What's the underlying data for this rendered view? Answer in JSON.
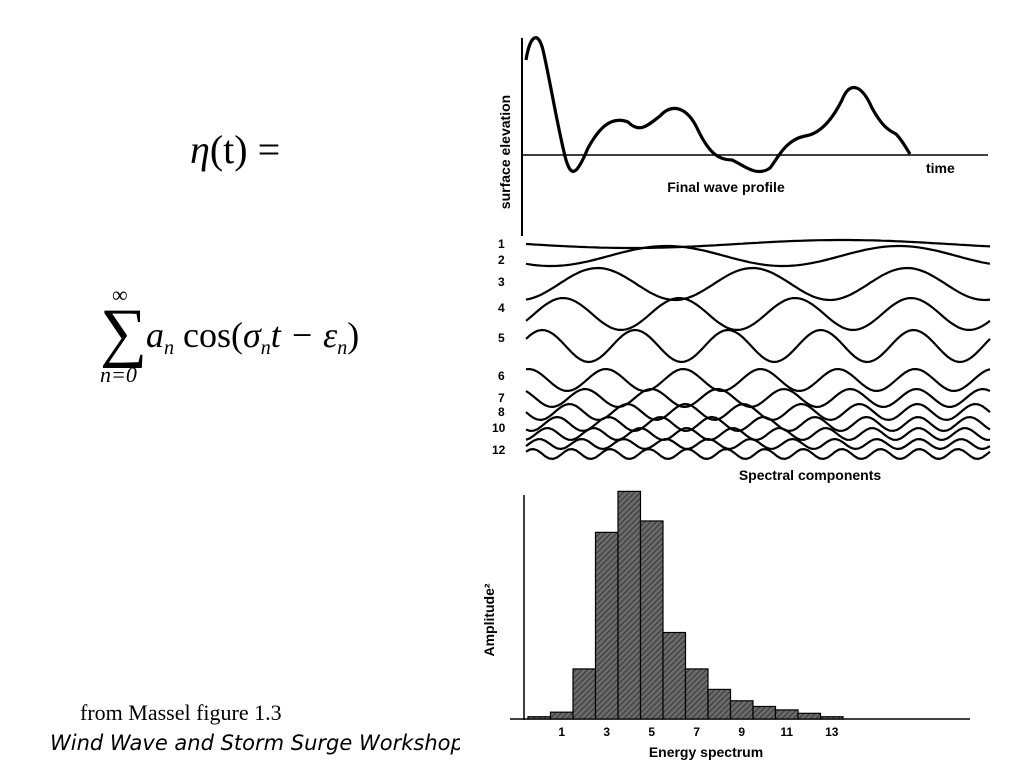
{
  "equation": {
    "lhs_symbol": "η",
    "lhs_arg": "(t) =",
    "sum_upper": "∞",
    "sum_lower": "n=0",
    "term_a": "a",
    "term_cos": "cos(",
    "term_sigma": "σ",
    "term_t": "t −",
    "term_eps": "ε",
    "term_close": ")",
    "subscript": "n"
  },
  "caption": {
    "source_line": "from Massel figure 1.3",
    "book_line": "Wind Wave and Storm Surge Workshop"
  },
  "profile_panel": {
    "ylabel": "surface elevation",
    "time_label": "time",
    "title": "Final wave profile"
  },
  "components_panel": {
    "title": "Spectral components",
    "row_labels": [
      "1",
      "2",
      "3",
      "4",
      "5",
      "6",
      "7",
      "8",
      "10",
      "12"
    ]
  },
  "chart_data": {
    "type": "bar",
    "title": "Energy spectrum",
    "xlabel": "Energy spectrum",
    "ylabel": "Amplitude²",
    "tick_labels": [
      "1",
      "3",
      "5",
      "7",
      "9",
      "11",
      "13"
    ],
    "categories": [
      "0",
      "1",
      "2",
      "3",
      "4",
      "5",
      "6",
      "7",
      "8",
      "9",
      "10",
      "11",
      "12",
      "13"
    ],
    "values": [
      0.01,
      0.03,
      0.22,
      0.82,
      1.0,
      0.87,
      0.38,
      0.22,
      0.13,
      0.08,
      0.055,
      0.04,
      0.025,
      0.01
    ],
    "ylim": [
      0,
      1.05
    ],
    "bar_color": "#555555"
  }
}
